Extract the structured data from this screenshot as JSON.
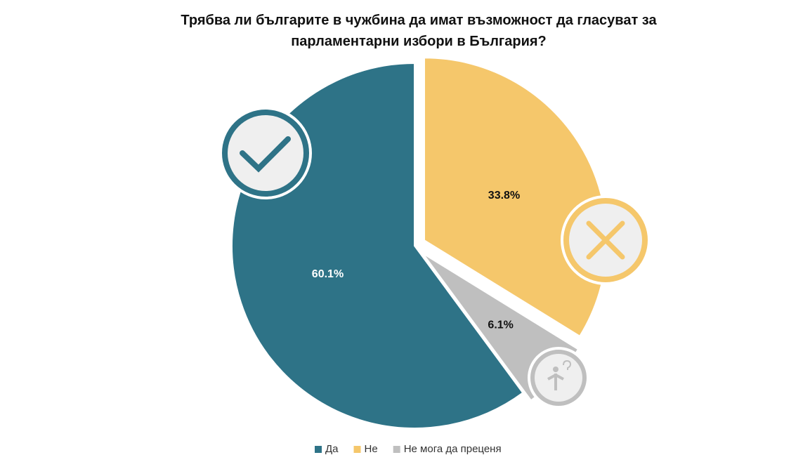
{
  "chart_data": {
    "type": "pie",
    "title": "Трябва ли българите в чужбина да имат възможност да гласуват за парламентарни избори в България?",
    "categories": [
      "Да",
      "Не",
      "Не мога да преценя"
    ],
    "values": [
      60.1,
      33.8,
      6.1
    ],
    "value_labels": [
      "60.1%",
      "33.8%",
      "6.1%"
    ],
    "colors": [
      "#2e7387",
      "#f5c76b",
      "#bfbfbf"
    ],
    "explode": [
      false,
      true,
      true
    ],
    "legend": "bottom"
  }
}
